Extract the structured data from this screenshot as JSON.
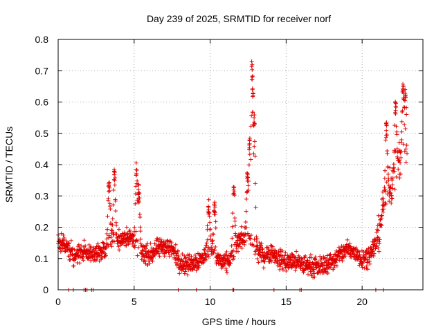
{
  "chart_data": {
    "type": "scatter",
    "title": "Day 239 of 2025, SRMTID for receiver norf",
    "xlabel": "GPS time / hours",
    "ylabel": "SRMTID / TECUs",
    "xlim": [
      0,
      24
    ],
    "ylim": [
      0,
      0.8
    ],
    "xticks": [
      0,
      5,
      10,
      15,
      20
    ],
    "xtick_labels": [
      "0",
      "5",
      "10",
      "15",
      "20"
    ],
    "yticks": [
      0,
      0.1,
      0.2,
      0.3,
      0.4,
      0.5,
      0.6,
      0.7,
      0.8
    ],
    "ytick_labels": [
      "0",
      "0.1",
      "0.2",
      "0.3",
      "0.4",
      "0.5",
      "0.6",
      "0.7",
      "0.8"
    ],
    "grid": true,
    "marker": "+",
    "color": "#e00000",
    "series": [
      {
        "name": "SRMTID",
        "trend": [
          [
            0.0,
            0.15
          ],
          [
            0.5,
            0.14
          ],
          [
            1.0,
            0.11
          ],
          [
            1.5,
            0.12
          ],
          [
            2.0,
            0.12
          ],
          [
            2.5,
            0.11
          ],
          [
            3.0,
            0.13
          ],
          [
            3.5,
            0.17
          ],
          [
            4.0,
            0.16
          ],
          [
            4.5,
            0.17
          ],
          [
            5.0,
            0.16
          ],
          [
            5.5,
            0.12
          ],
          [
            6.0,
            0.11
          ],
          [
            6.5,
            0.13
          ],
          [
            7.0,
            0.14
          ],
          [
            7.5,
            0.13
          ],
          [
            8.0,
            0.09
          ],
          [
            8.5,
            0.08
          ],
          [
            9.0,
            0.09
          ],
          [
            9.5,
            0.1
          ],
          [
            10.0,
            0.14
          ],
          [
            10.5,
            0.1
          ],
          [
            11.0,
            0.08
          ],
          [
            11.5,
            0.11
          ],
          [
            12.0,
            0.17
          ],
          [
            12.5,
            0.16
          ],
          [
            13.0,
            0.13
          ],
          [
            13.5,
            0.11
          ],
          [
            14.0,
            0.12
          ],
          [
            14.5,
            0.1
          ],
          [
            15.0,
            0.09
          ],
          [
            15.5,
            0.09
          ],
          [
            16.0,
            0.08
          ],
          [
            16.5,
            0.08
          ],
          [
            17.0,
            0.07
          ],
          [
            17.5,
            0.08
          ],
          [
            18.0,
            0.09
          ],
          [
            18.5,
            0.11
          ],
          [
            19.0,
            0.13
          ],
          [
            19.5,
            0.12
          ],
          [
            20.0,
            0.1
          ],
          [
            20.5,
            0.11
          ],
          [
            21.0,
            0.16
          ],
          [
            21.5,
            0.3
          ],
          [
            22.0,
            0.35
          ],
          [
            22.5,
            0.42
          ],
          [
            22.9,
            0.45
          ]
        ],
        "spikes": [
          [
            3.35,
            0.36
          ],
          [
            3.7,
            0.39
          ],
          [
            5.15,
            0.4
          ],
          [
            5.3,
            0.34
          ],
          [
            9.9,
            0.29
          ],
          [
            10.3,
            0.29
          ],
          [
            11.55,
            0.35
          ],
          [
            12.45,
            0.38
          ],
          [
            12.6,
            0.48
          ],
          [
            12.75,
            0.72
          ],
          [
            12.8,
            0.66
          ],
          [
            12.9,
            0.56
          ],
          [
            21.6,
            0.53
          ],
          [
            22.2,
            0.6
          ],
          [
            22.7,
            0.66
          ],
          [
            22.85,
            0.64
          ]
        ],
        "zeros": [
          0.7,
          1.0,
          1.7,
          1.8,
          1.9,
          2.2,
          2.3,
          7.9,
          9.1,
          11.5,
          11.55,
          14.2,
          15.9,
          16.0,
          20.9,
          21.4
        ]
      }
    ]
  }
}
